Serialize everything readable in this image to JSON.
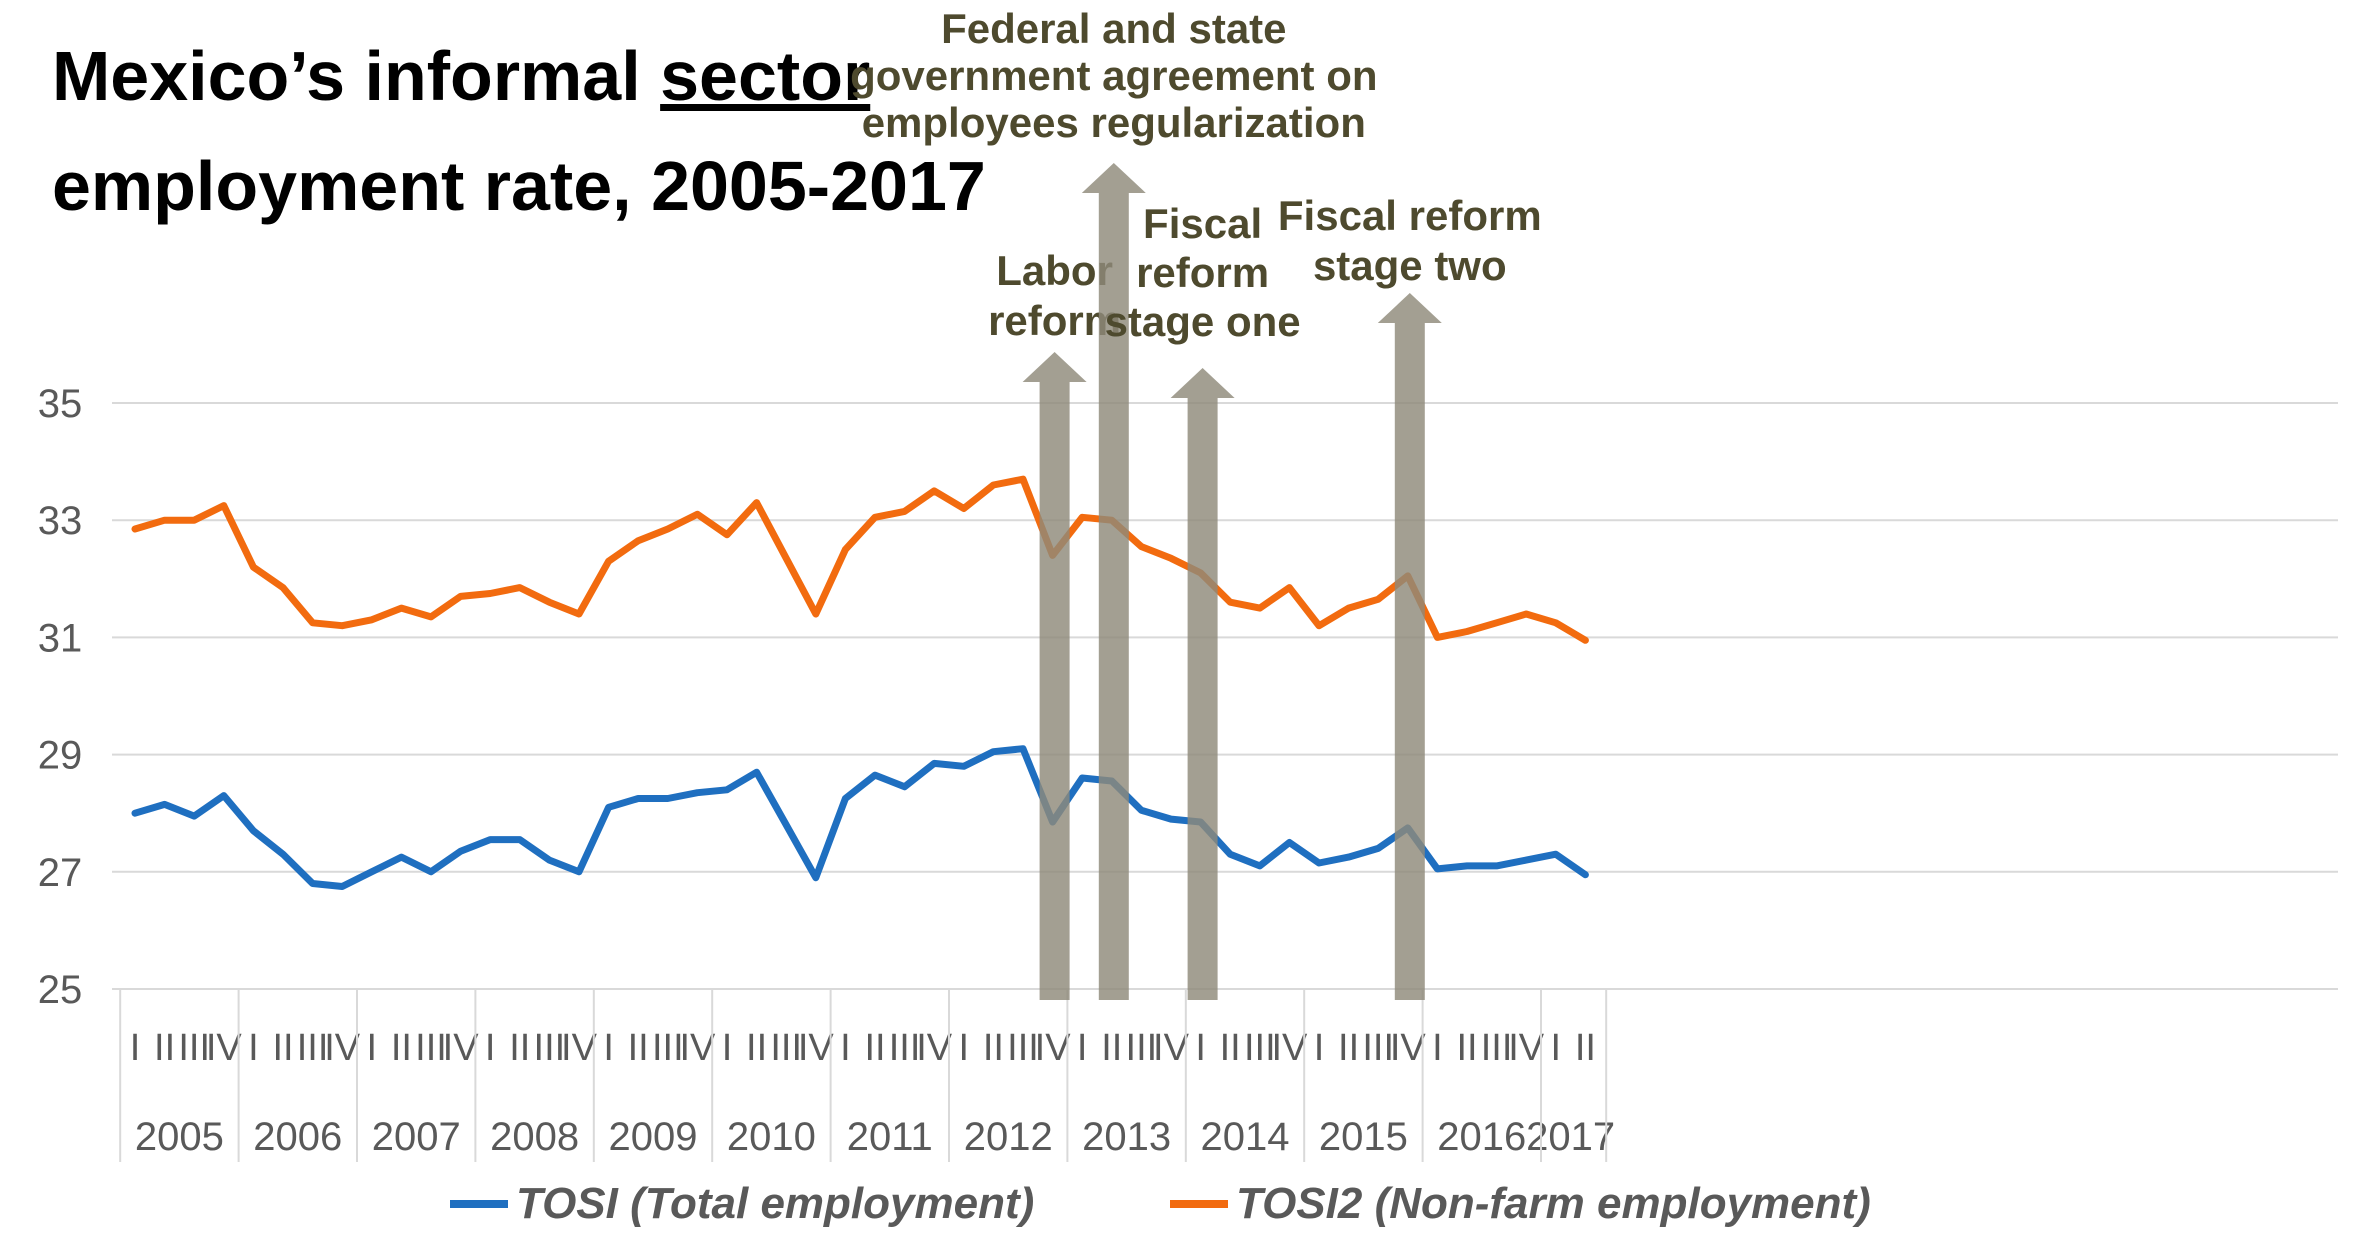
{
  "title": {
    "line1_pre": "Mexico’s informal ",
    "line1_underlined": "sector",
    "line2": "employment rate, 2005-2017"
  },
  "colors": {
    "tosi": "#1f6fc0",
    "tosi2": "#f26b0f",
    "arrow": "#8f8a7a",
    "annotation": "#4e4a2e",
    "grid": "#d9d9d9",
    "axis_text": "#595959"
  },
  "chart_data": {
    "type": "line",
    "ylim": [
      25,
      35
    ],
    "yticks": [
      25,
      27,
      29,
      31,
      33,
      35
    ],
    "grid": "horizontal",
    "legend_position": "bottom",
    "years": [
      {
        "label": "2005",
        "quarters": [
          "I",
          "II",
          "III",
          "IV"
        ]
      },
      {
        "label": "2006",
        "quarters": [
          "I",
          "II",
          "III",
          "IV"
        ]
      },
      {
        "label": "2007",
        "quarters": [
          "I",
          "II",
          "III",
          "IV"
        ]
      },
      {
        "label": "2008",
        "quarters": [
          "I",
          "II",
          "III",
          "IV"
        ]
      },
      {
        "label": "2009",
        "quarters": [
          "I",
          "II",
          "III",
          "IV"
        ]
      },
      {
        "label": "2010",
        "quarters": [
          "I",
          "II",
          "III",
          "IV"
        ]
      },
      {
        "label": "2011",
        "quarters": [
          "I",
          "II",
          "III",
          "IV"
        ]
      },
      {
        "label": "2012",
        "quarters": [
          "I",
          "II",
          "III",
          "IV"
        ]
      },
      {
        "label": "2013",
        "quarters": [
          "I",
          "II",
          "III",
          "IV"
        ]
      },
      {
        "label": "2014",
        "quarters": [
          "I",
          "II",
          "III",
          "IV"
        ]
      },
      {
        "label": "2015",
        "quarters": [
          "I",
          "II",
          "III",
          "IV"
        ]
      },
      {
        "label": "2016",
        "quarters": [
          "I",
          "II",
          "III",
          "IV"
        ]
      },
      {
        "label": "2017",
        "quarters": [
          "I",
          "II"
        ]
      }
    ],
    "series": [
      {
        "name": "TOSI (Total employment)",
        "color": "#1f6fc0",
        "values": [
          28.0,
          28.15,
          27.95,
          28.3,
          27.7,
          27.3,
          26.8,
          26.75,
          27.0,
          27.25,
          27.0,
          27.35,
          27.55,
          27.55,
          27.2,
          27.0,
          28.1,
          28.25,
          28.25,
          28.35,
          28.4,
          28.7,
          27.8,
          26.9,
          28.25,
          28.65,
          28.45,
          28.85,
          28.8,
          29.05,
          29.1,
          27.85,
          28.6,
          28.55,
          28.05,
          27.9,
          27.85,
          27.3,
          27.1,
          27.5,
          27.15,
          27.25,
          27.4,
          27.75,
          27.05,
          27.1,
          27.1,
          27.2,
          27.3,
          26.95
        ]
      },
      {
        "name": "TOSI2 (Non-farm employment)",
        "color": "#f26b0f",
        "values": [
          32.85,
          33.0,
          33.0,
          33.25,
          32.2,
          31.85,
          31.25,
          31.2,
          31.3,
          31.5,
          31.35,
          31.7,
          31.75,
          31.85,
          31.6,
          31.4,
          32.3,
          32.65,
          32.85,
          33.1,
          32.75,
          33.3,
          32.35,
          31.4,
          32.5,
          33.05,
          33.15,
          33.5,
          33.2,
          33.6,
          33.7,
          32.4,
          33.05,
          33.0,
          32.55,
          32.35,
          32.1,
          31.6,
          31.5,
          31.85,
          31.2,
          31.5,
          31.65,
          32.05,
          31.0,
          31.1,
          31.25,
          31.4,
          31.25,
          30.95
        ]
      }
    ],
    "annotations": [
      {
        "lines": [
          "Labor",
          "reform"
        ],
        "quarter_index": 31
      },
      {
        "lines": [
          "Federal and state",
          "government agreement on",
          "employees regularization"
        ],
        "quarter_index": 33
      },
      {
        "lines": [
          "Fiscal",
          "reform",
          "stage one"
        ],
        "quarter_index": 36
      },
      {
        "lines": [
          "Fiscal reform",
          "stage two"
        ],
        "quarter_index": 43
      }
    ]
  }
}
